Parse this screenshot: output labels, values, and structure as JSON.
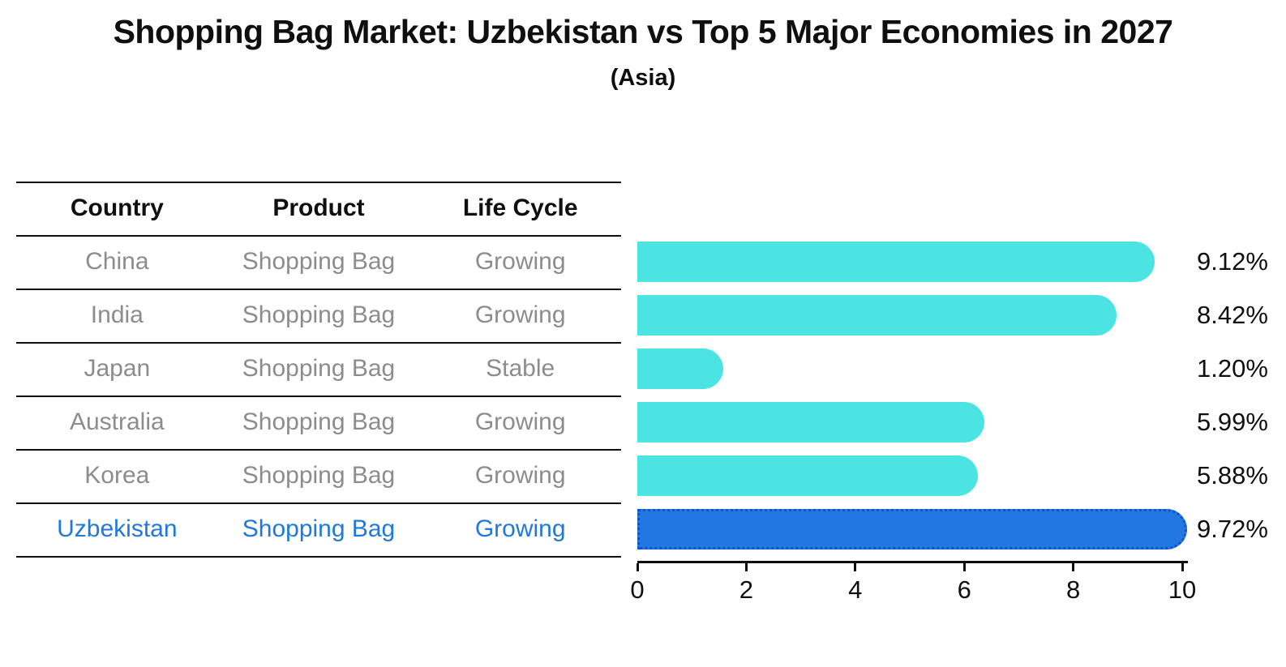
{
  "header": {
    "title": "Shopping Bag Market: Uzbekistan vs Top 5 Major Economies in 2027",
    "subtitle": "(Asia)"
  },
  "table": {
    "headers": [
      "Country",
      "Product",
      "Life Cycle"
    ],
    "rows": [
      {
        "country": "China",
        "product": "Shopping Bag",
        "life_cycle": "Growing",
        "highlight": false
      },
      {
        "country": "India",
        "product": "Shopping Bag",
        "life_cycle": "Growing",
        "highlight": false
      },
      {
        "country": "Japan",
        "product": "Shopping Bag",
        "life_cycle": "Stable",
        "highlight": false
      },
      {
        "country": "Australia",
        "product": "Shopping Bag",
        "life_cycle": "Growing",
        "highlight": false
      },
      {
        "country": "Korea",
        "product": "Shopping Bag",
        "life_cycle": "Growing",
        "highlight": false
      },
      {
        "country": "Uzbekistan",
        "product": "Shopping Bag",
        "life_cycle": "Growing",
        "highlight": true
      }
    ]
  },
  "chart_data": {
    "type": "bar",
    "orientation": "horizontal",
    "title": "Shopping Bag Market: Uzbekistan vs Top 5 Major Economies in 2027",
    "subtitle": "(Asia)",
    "categories": [
      "China",
      "India",
      "Japan",
      "Australia",
      "Korea",
      "Uzbekistan"
    ],
    "values": [
      9.12,
      8.42,
      1.2,
      5.99,
      5.88,
      9.72
    ],
    "value_labels": [
      "9.12%",
      "8.42%",
      "1.20%",
      "5.99%",
      "5.88%",
      "9.72%"
    ],
    "highlight_index": 5,
    "xlabel": "",
    "ylabel": "",
    "xlim": [
      0,
      10.1
    ],
    "xticks": [
      0,
      2,
      4,
      6,
      8,
      10
    ],
    "grid": false,
    "legend": false
  },
  "colors": {
    "bar": "#4be4e2",
    "highlight_bar": "#2277e0",
    "highlight_border": "#1253cb",
    "highlight_text": "#1f78dc",
    "table_text": "#8c8c8c",
    "text": "#0f0f0f"
  }
}
